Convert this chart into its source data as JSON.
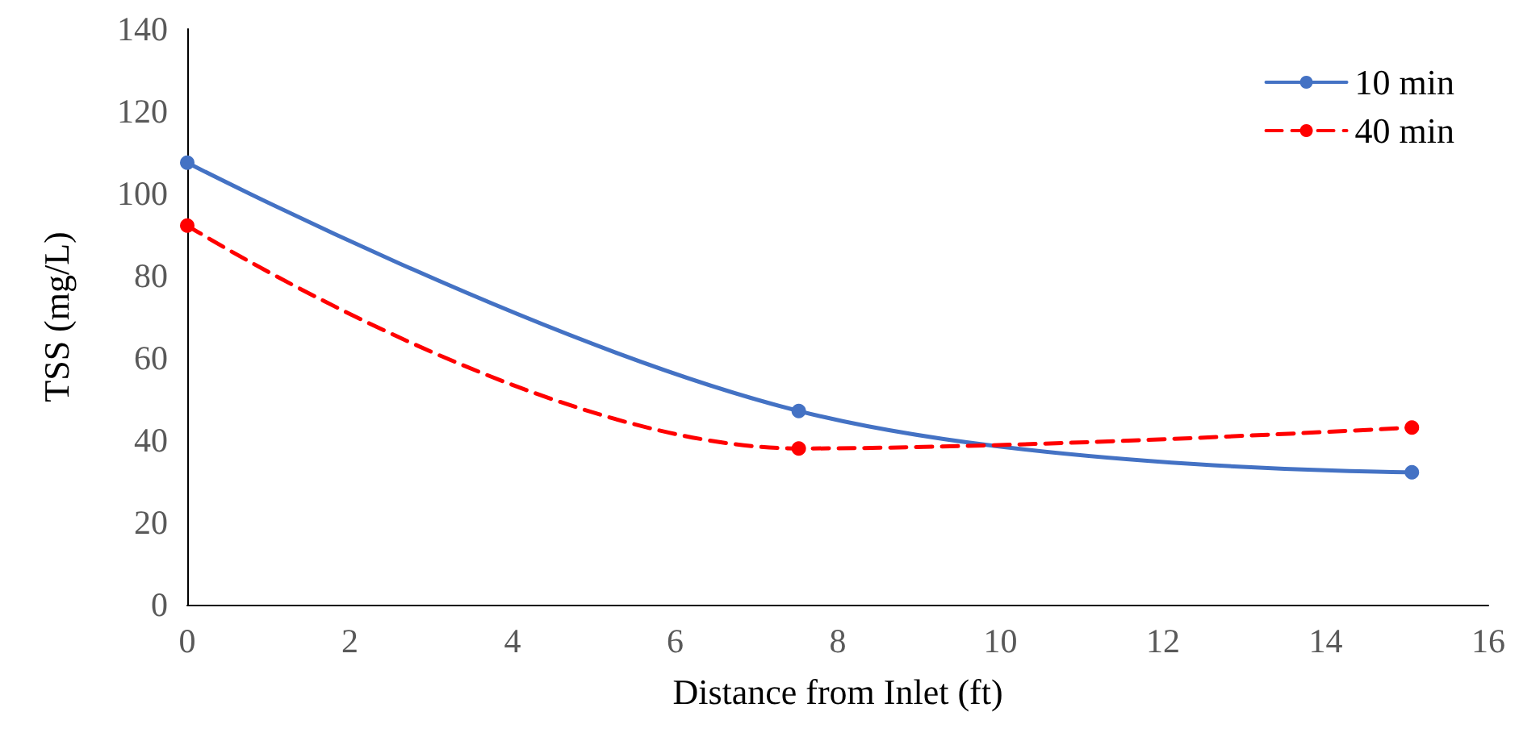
{
  "chart_data": {
    "type": "line",
    "xlabel": "Distance from Inlet (ft)",
    "ylabel": "TSS (mg/L)",
    "x": [
      0,
      7.52,
      15.06
    ],
    "series": [
      {
        "name": "10 min",
        "color": "#4472c4",
        "values": [
          107.5,
          47.1,
          32.2
        ],
        "line_style": "solid"
      },
      {
        "name": "40 min",
        "color": "#ff0000",
        "values": [
          92.2,
          38.0,
          43.1
        ],
        "line_style": "dashed"
      }
    ],
    "xlim": [
      0,
      16
    ],
    "xticks": [
      0,
      2,
      4,
      6,
      8,
      10,
      12,
      14,
      16
    ],
    "ylim": [
      0,
      140
    ],
    "yticks": [
      0,
      20,
      40,
      60,
      80,
      100,
      120,
      140
    ],
    "grid": false,
    "legend": "top right",
    "marker": "circle"
  }
}
